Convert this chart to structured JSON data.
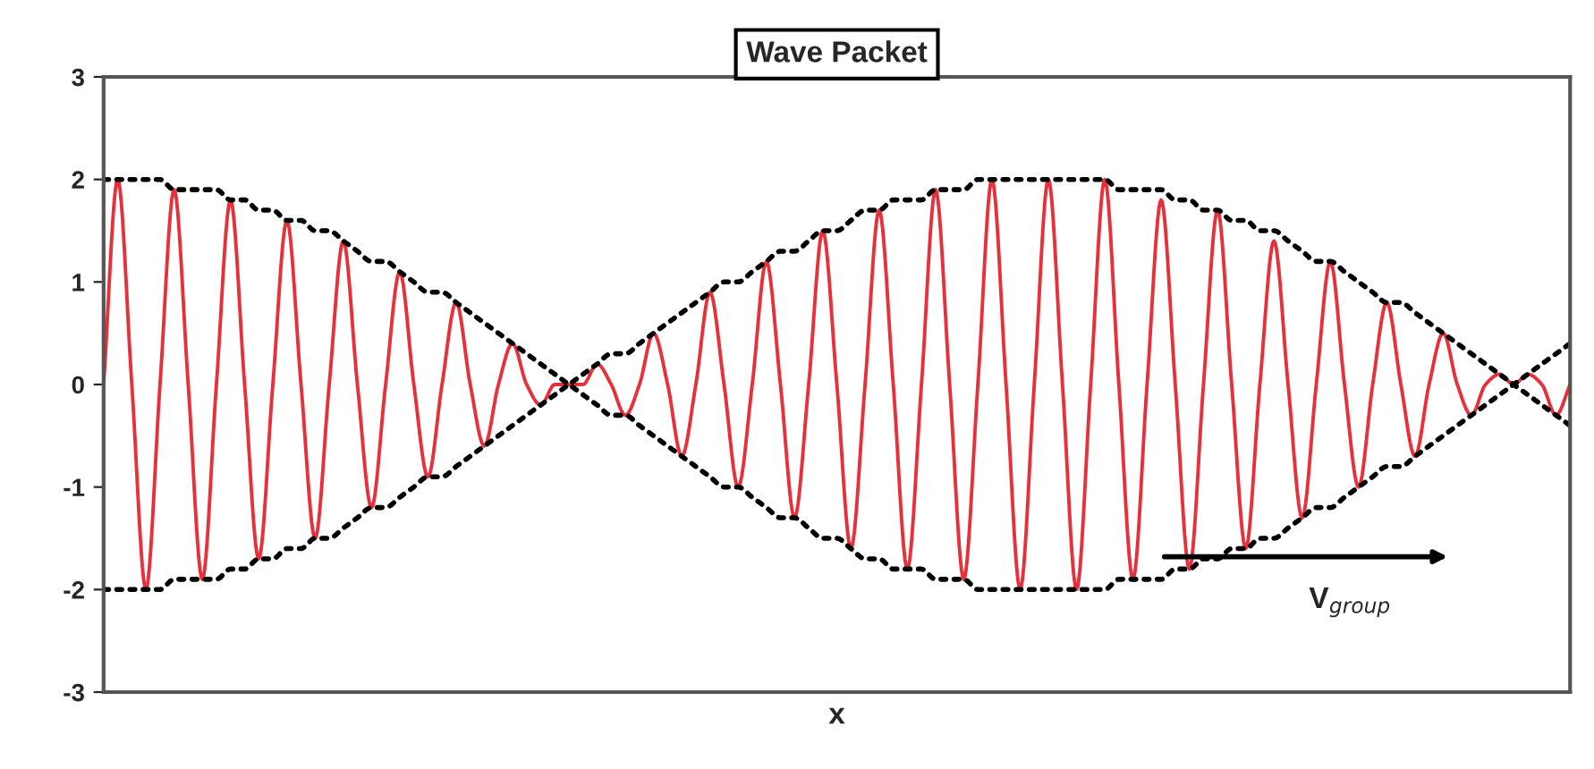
{
  "chart_data": {
    "type": "line",
    "title": "Wave Packet",
    "xlabel": "x",
    "categories": [
      null,
      null,
      null,
      null,
      null,
      null,
      null,
      null,
      null,
      null,
      null,
      null,
      null,
      null,
      null,
      null,
      null,
      null,
      null,
      null,
      null,
      null,
      null,
      null,
      null,
      null,
      null,
      null,
      null,
      null,
      null,
      null,
      null,
      null,
      null,
      null,
      null,
      null,
      null,
      null,
      null,
      null,
      null,
      null,
      null,
      null,
      null,
      null,
      null,
      null,
      null,
      null,
      null,
      null,
      null,
      null,
      null,
      null,
      null,
      null,
      null,
      null,
      null,
      null,
      null,
      null,
      null,
      null,
      null,
      null,
      null,
      null,
      null,
      null,
      null,
      null,
      null,
      null,
      null,
      null,
      null,
      null,
      null,
      null,
      null,
      null,
      null,
      null,
      null,
      null,
      null,
      null,
      null,
      null,
      null,
      null,
      null,
      null,
      null,
      null,
      null,
      null,
      null,
      null,
      null
    ],
    "series": [
      {
        "color": "#e8303a",
        "line_style": "solid",
        "values": [
          0,
          2.0,
          0,
          -2.0,
          0,
          1.9,
          0,
          -1.9,
          0,
          1.8,
          0,
          -1.7,
          0,
          1.6,
          0,
          -1.5,
          0,
          1.4,
          0,
          -1.2,
          0,
          1.1,
          0,
          -0.9,
          0,
          0.8,
          0,
          -0.6,
          0,
          0.4,
          0,
          -0.2,
          0,
          0.0,
          0,
          0.2,
          0,
          -0.3,
          0,
          0.5,
          0,
          -0.7,
          0,
          0.9,
          0,
          -1.0,
          0,
          1.2,
          0,
          -1.3,
          0,
          1.5,
          0,
          -1.6,
          0,
          1.7,
          0,
          -1.8,
          0,
          1.9,
          0,
          -1.9,
          0,
          2.0,
          0,
          -2.0,
          0,
          2.0,
          0,
          -2.0,
          0,
          2.0,
          0,
          -1.9,
          0,
          1.8,
          0,
          -1.8,
          0,
          1.7,
          0,
          -1.6,
          0,
          1.4,
          0,
          -1.3,
          0,
          1.2,
          0,
          -1.0,
          0,
          0.8,
          0,
          -0.7,
          0,
          0.5,
          0,
          -0.3,
          0,
          0.1,
          0,
          0.1,
          0,
          -0.3,
          0
        ]
      },
      {
        "color": "#000000",
        "line_style": "dotted",
        "values": [
          2.0,
          2.0,
          2.0,
          2.0,
          2.0,
          1.9,
          1.9,
          1.9,
          1.9,
          1.8,
          1.8,
          1.7,
          1.7,
          1.6,
          1.6,
          1.5,
          1.5,
          1.4,
          1.3,
          1.2,
          1.2,
          1.1,
          1.0,
          0.9,
          0.9,
          0.8,
          0.7,
          0.6,
          0.5,
          0.4,
          0.3,
          0.2,
          0.1,
          0.0,
          -0.1,
          -0.2,
          -0.3,
          -0.3,
          -0.4,
          -0.5,
          -0.6,
          -0.7,
          -0.8,
          -0.9,
          -1.0,
          -1.0,
          -1.1,
          -1.2,
          -1.3,
          -1.3,
          -1.4,
          -1.5,
          -1.5,
          -1.6,
          -1.7,
          -1.7,
          -1.8,
          -1.8,
          -1.8,
          -1.9,
          -1.9,
          -1.9,
          -2.0,
          -2.0,
          -2.0,
          -2.0,
          -2.0,
          -2.0,
          -2.0,
          -2.0,
          -2.0,
          -2.0,
          -1.9,
          -1.9,
          -1.9,
          -1.9,
          -1.8,
          -1.8,
          -1.7,
          -1.7,
          -1.6,
          -1.6,
          -1.5,
          -1.5,
          -1.4,
          -1.3,
          -1.2,
          -1.2,
          -1.1,
          -1.0,
          -0.9,
          -0.8,
          -0.8,
          -0.7,
          -0.6,
          -0.5,
          -0.4,
          -0.3,
          -0.2,
          -0.1,
          0.0,
          0.1,
          0.2,
          0.3,
          0.4
        ]
      },
      {
        "color": "#000000",
        "line_style": "dotted",
        "values": [
          -2.0,
          -2.0,
          -2.0,
          -2.0,
          -2.0,
          -1.9,
          -1.9,
          -1.9,
          -1.9,
          -1.8,
          -1.8,
          -1.7,
          -1.7,
          -1.6,
          -1.6,
          -1.5,
          -1.5,
          -1.4,
          -1.3,
          -1.2,
          -1.2,
          -1.1,
          -1.0,
          -0.9,
          -0.9,
          -0.8,
          -0.7,
          -0.6,
          -0.5,
          -0.4,
          -0.3,
          -0.2,
          -0.1,
          0.0,
          0.1,
          0.2,
          0.3,
          0.3,
          0.4,
          0.5,
          0.6,
          0.7,
          0.8,
          0.9,
          1.0,
          1.0,
          1.1,
          1.2,
          1.3,
          1.3,
          1.4,
          1.5,
          1.5,
          1.6,
          1.7,
          1.7,
          1.8,
          1.8,
          1.8,
          1.9,
          1.9,
          1.9,
          2.0,
          2.0,
          2.0,
          2.0,
          2.0,
          2.0,
          2.0,
          2.0,
          2.0,
          2.0,
          1.9,
          1.9,
          1.9,
          1.9,
          1.8,
          1.8,
          1.7,
          1.7,
          1.6,
          1.6,
          1.5,
          1.5,
          1.4,
          1.3,
          1.2,
          1.2,
          1.1,
          1.0,
          0.9,
          0.8,
          0.8,
          0.7,
          0.6,
          0.5,
          0.4,
          0.3,
          0.2,
          0.1,
          0.0,
          -0.1,
          -0.2,
          -0.3,
          -0.4
        ]
      }
    ],
    "ylim": [
      -3,
      3
    ],
    "yticks": [
      -3,
      -2,
      -1,
      0,
      1,
      2,
      3
    ],
    "grid": false,
    "legend": false,
    "tick_labels": "y",
    "annotations": [
      "V$_{group}$"
    ]
  }
}
